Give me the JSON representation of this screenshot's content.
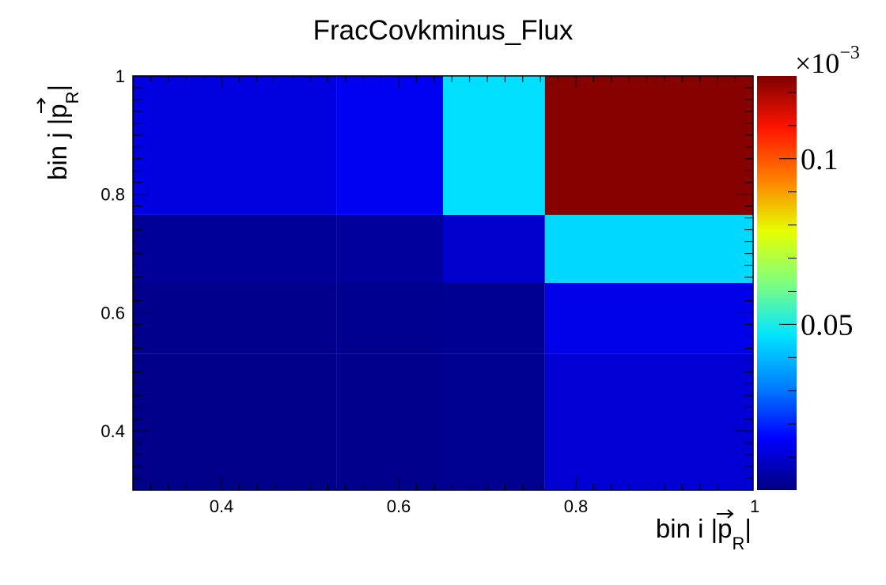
{
  "chart_data": {
    "type": "heatmap",
    "title": "FracCovkminus_Flux",
    "xlabel": {
      "text": "bin i |",
      "vector": "p",
      "subscript": "R",
      "close": "|"
    },
    "ylabel": {
      "text": "bin j |",
      "vector": "p",
      "subscript": "R",
      "close": "|"
    },
    "x_edges": [
      0.3,
      0.53,
      0.65,
      0.765,
      1.0
    ],
    "y_edges": [
      0.3,
      0.53,
      0.65,
      0.765,
      1.0
    ],
    "xlim": [
      0.3,
      1.0
    ],
    "ylim": [
      0.3,
      1.0
    ],
    "x_ticks": [
      "0.4",
      "0.6",
      "0.8",
      "1"
    ],
    "y_ticks": [
      "0.4",
      "0.6",
      "0.8",
      "1"
    ],
    "z_scale_label": "×10",
    "z_scale_exponent": "−3",
    "z_range": [
      0.0,
      0.125
    ],
    "z_ticks": [
      "0.05",
      "0.1"
    ],
    "colormap": [
      "#00007f",
      "#0000ff",
      "#007fff",
      "#00e5ff",
      "#7fff7f",
      "#e5ff00",
      "#ff7f00",
      "#ff1400",
      "#7f0000"
    ],
    "values": [
      [
        0.0014,
        0.0016,
        0.0022,
        0.0105
      ],
      [
        0.0017,
        0.0019,
        0.0024,
        0.013
      ],
      [
        0.003,
        0.0036,
        0.0095,
        0.045
      ],
      [
        0.012,
        0.014,
        0.046,
        0.124
      ]
    ]
  }
}
